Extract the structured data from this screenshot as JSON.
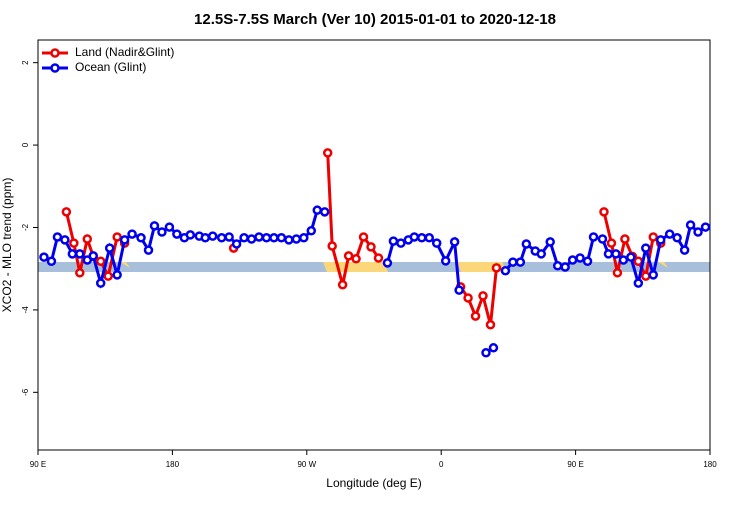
{
  "chart_data": {
    "type": "line",
    "title": "12.5S-7.5S March (Ver 10)   2015-01-01 to 2020-12-18",
    "x_label": "Longitude (deg E)",
    "y_label": "XCO2 - MLO trend (ppm)",
    "xlim": [
      90,
      540
    ],
    "xticks": [
      {
        "value": 90,
        "label": "90 E"
      },
      {
        "value": 180,
        "label": "180"
      },
      {
        "value": 270,
        "label": "90 W"
      },
      {
        "value": 360,
        "label": "0"
      },
      {
        "value": 450,
        "label": "90 E"
      },
      {
        "value": 540,
        "label": "180"
      }
    ],
    "ylim": [
      -7.4,
      2.55
    ],
    "yticks": [
      2,
      0,
      -2,
      -4,
      -6
    ],
    "legend": "top-left",
    "series": [
      {
        "name": "Land (Nadir&Glint)",
        "color": "#ee0000",
        "x": [
          109,
          114,
          118,
          123,
          127,
          132,
          137,
          143,
          148,
          null,
          221,
          null,
          284,
          287,
          294,
          298,
          303,
          308,
          313,
          318,
          null,
          373,
          378,
          383,
          388,
          393,
          397,
          null,
          469,
          474,
          478,
          483,
          488,
          492,
          497,
          502,
          507
        ],
        "values": [
          -1.62,
          -2.38,
          -3.1,
          -2.28,
          -2.7,
          -2.82,
          -3.18,
          -2.23,
          -2.38,
          null,
          -2.5,
          null,
          -0.19,
          -2.45,
          -3.39,
          -2.69,
          -2.76,
          -2.23,
          -2.47,
          -2.74,
          null,
          -3.44,
          -3.71,
          -4.15,
          -3.66,
          -4.36,
          -2.98,
          null,
          -1.62,
          -2.38,
          -3.1,
          -2.28,
          -2.7,
          -2.82,
          -3.18,
          -2.23,
          -2.38
        ]
      },
      {
        "name": "Ocean (Glint)",
        "color": "#0000ee",
        "x": [
          94,
          99,
          103,
          108,
          113,
          118,
          123,
          127,
          132,
          138,
          143,
          148,
          153,
          159,
          164,
          168,
          173,
          178,
          183,
          188,
          192,
          198,
          202,
          207,
          213,
          218,
          223,
          228,
          233,
          238,
          243,
          248,
          253,
          258,
          263,
          268,
          273,
          277,
          282,
          null,
          324,
          328,
          333,
          338,
          342,
          347,
          352,
          357,
          363,
          369,
          372,
          null,
          390,
          395,
          null,
          403,
          408,
          413,
          417,
          423,
          427,
          433,
          438,
          443,
          448,
          453,
          458,
          462,
          468,
          472,
          477,
          482,
          487,
          492,
          497,
          502,
          507,
          513,
          518,
          523,
          527,
          532,
          537
        ],
        "values": [
          -2.72,
          -2.82,
          -2.23,
          -2.3,
          -2.64,
          -2.64,
          -2.79,
          -2.69,
          -3.35,
          -2.5,
          -3.15,
          -2.3,
          -2.16,
          -2.25,
          -2.55,
          -1.96,
          -2.11,
          -1.99,
          -2.16,
          -2.25,
          -2.18,
          -2.21,
          -2.25,
          -2.21,
          -2.25,
          -2.23,
          -2.4,
          -2.25,
          -2.28,
          -2.23,
          -2.25,
          -2.25,
          -2.25,
          -2.3,
          -2.28,
          -2.25,
          -2.08,
          -1.58,
          -1.62,
          null,
          -2.86,
          -2.33,
          -2.38,
          -2.3,
          -2.23,
          -2.25,
          -2.25,
          -2.38,
          -2.81,
          -2.35,
          -3.52,
          null,
          -5.04,
          -4.92,
          null,
          -3.05,
          -2.84,
          -2.84,
          -2.4,
          -2.57,
          -2.64,
          -2.35,
          -2.93,
          -2.96,
          -2.79,
          -2.74,
          -2.82,
          -2.23,
          -2.28,
          -2.64,
          -2.64,
          -2.79,
          -2.72,
          -3.35,
          -2.5,
          -3.15,
          -2.3,
          -2.16,
          -2.25,
          -2.55,
          -1.94,
          -2.11,
          -1.99
        ]
      }
    ]
  }
}
